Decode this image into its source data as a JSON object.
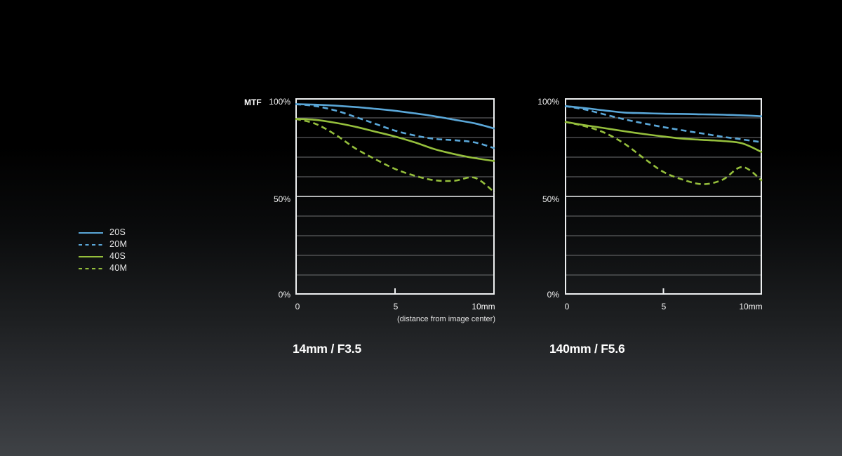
{
  "colors": {
    "blue": "#5aa7d8",
    "green": "#95bf3c",
    "grid_minor": "#6f7173",
    "grid_major": "#eef0f1",
    "text": "#f2f2f2",
    "background_top": "#000000",
    "background_bottom": "#3f4246"
  },
  "legend": {
    "items": [
      {
        "label": "20S",
        "color": "#5aa7d8",
        "style": "solid"
      },
      {
        "label": "20M",
        "color": "#5aa7d8",
        "style": "dashed"
      },
      {
        "label": "40S",
        "color": "#95bf3c",
        "style": "solid"
      },
      {
        "label": "40M",
        "color": "#95bf3c",
        "style": "dashed"
      }
    ]
  },
  "chart_data": [
    {
      "id": "left",
      "type": "line",
      "title": "14mm / F3.5",
      "y_axis_label": "MTF",
      "y_ticks": [
        "100%",
        "50%",
        "0%"
      ],
      "x_ticks": [
        "0",
        "5",
        "10mm"
      ],
      "x_axis_note": "(distance from image center)",
      "x_range": [
        0,
        10
      ],
      "y_range_percent": [
        0,
        100
      ],
      "gridline_step_percent": 10,
      "grid": "on",
      "legend_position": "left-outside",
      "x": [
        0,
        1,
        2,
        3,
        4,
        5,
        6,
        7,
        8,
        9,
        10
      ],
      "series": [
        {
          "name": "20S",
          "color": "#5aa7d8",
          "style": "solid",
          "values": [
            97,
            96.7,
            96.2,
            95.5,
            94.6,
            93.6,
            92.3,
            90.8,
            89,
            87.2,
            84.5
          ]
        },
        {
          "name": "20M",
          "color": "#5aa7d8",
          "style": "dashed",
          "values": [
            97,
            96,
            93.8,
            90.5,
            87,
            83.5,
            81,
            79.3,
            78.6,
            77.5,
            74.5
          ]
        },
        {
          "name": "40S",
          "color": "#95bf3c",
          "style": "solid",
          "values": [
            89.5,
            89,
            87.5,
            85.5,
            83,
            80.5,
            77.5,
            74,
            71.5,
            69.5,
            68
          ]
        },
        {
          "name": "40M",
          "color": "#95bf3c",
          "style": "dashed",
          "values": [
            89.5,
            87,
            81.5,
            74.5,
            69,
            64,
            60.5,
            58.2,
            58,
            59.5,
            52
          ]
        }
      ]
    },
    {
      "id": "right",
      "type": "line",
      "title": "140mm / F5.6",
      "y_ticks": [
        "100%",
        "50%",
        "0%"
      ],
      "x_ticks": [
        "0",
        "5",
        "10mm"
      ],
      "x_range": [
        0,
        10
      ],
      "y_range_percent": [
        0,
        100
      ],
      "gridline_step_percent": 10,
      "grid": "on",
      "x": [
        0,
        1,
        2,
        3,
        4,
        5,
        6,
        7,
        8,
        9,
        10
      ],
      "series": [
        {
          "name": "20S",
          "color": "#5aa7d8",
          "style": "solid",
          "values": [
            96,
            95,
            93.8,
            92.7,
            92.4,
            92.1,
            92,
            91.8,
            91.6,
            91.3,
            90.8
          ]
        },
        {
          "name": "20M",
          "color": "#5aa7d8",
          "style": "dashed",
          "values": [
            96,
            94.3,
            91.8,
            89.3,
            87.2,
            85.3,
            83.6,
            82,
            80.4,
            79,
            77.6
          ]
        },
        {
          "name": "40S",
          "color": "#95bf3c",
          "style": "solid",
          "values": [
            88,
            86.3,
            84.8,
            83.2,
            81.8,
            80.5,
            79.4,
            78.8,
            78.2,
            77,
            72.5
          ]
        },
        {
          "name": "40M",
          "color": "#95bf3c",
          "style": "dashed",
          "values": [
            88,
            85.8,
            82.5,
            77,
            69.5,
            62.5,
            58.5,
            56.2,
            58.5,
            65,
            58
          ]
        }
      ]
    }
  ]
}
